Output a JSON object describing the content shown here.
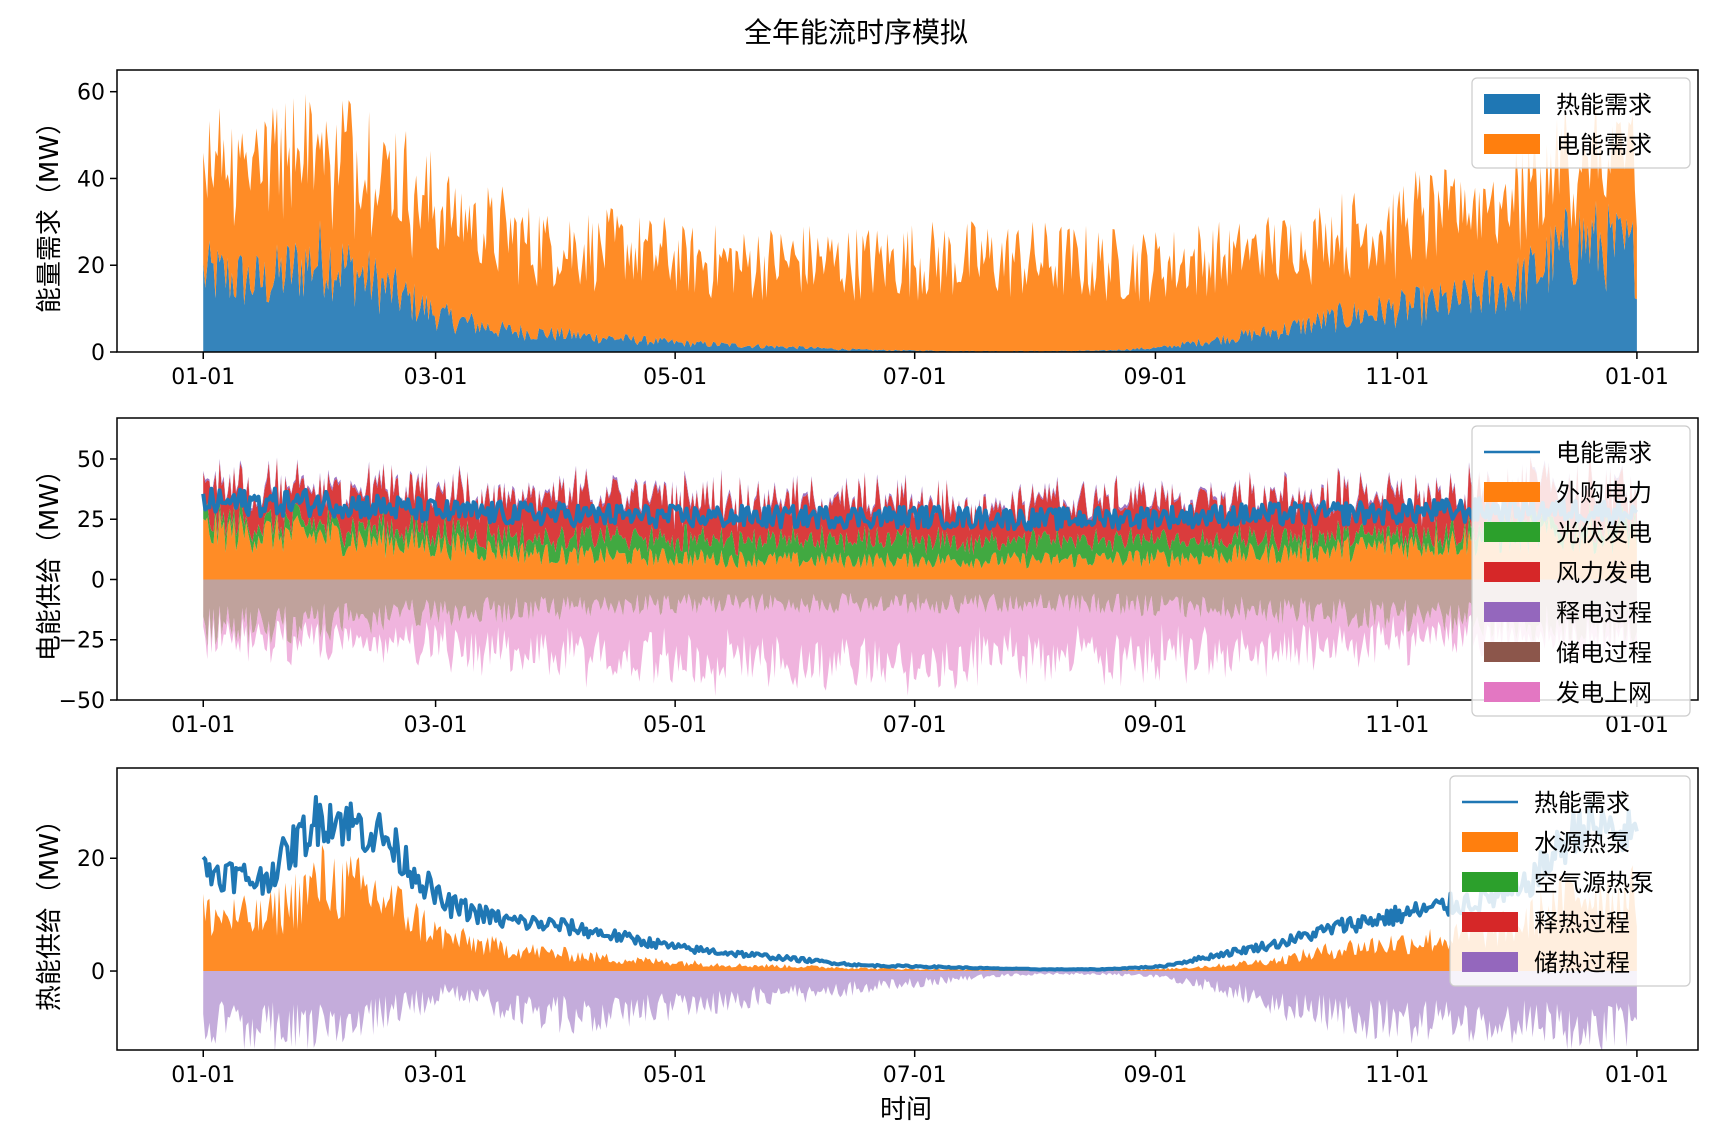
{
  "figure": {
    "suptitle": "全年能流时序模拟",
    "xlabel": "时间"
  },
  "chart_data": [
    {
      "type": "area",
      "id": "demand",
      "ylabel": "能量需求（MW）",
      "ylim": [
        0,
        65
      ],
      "yticks": [
        0,
        20,
        40,
        60
      ],
      "grid": false,
      "legend_position": "top-right",
      "x_unit": "month (2023-01-01 = 0)",
      "xticks": [
        {
          "label": "01-01",
          "x": 0
        },
        {
          "label": "03-01",
          "x": 1.94
        },
        {
          "label": "05-01",
          "x": 3.94
        },
        {
          "label": "07-01",
          "x": 5.94
        },
        {
          "label": "09-01",
          "x": 7.95
        },
        {
          "label": "11-01",
          "x": 9.97
        },
        {
          "label": "01-01",
          "x": 11.97
        }
      ],
      "x": [
        0,
        0.5,
        1,
        1.5,
        2,
        2.5,
        3,
        3.5,
        4,
        4.5,
        5,
        5.5,
        6,
        6.5,
        7,
        7.5,
        8,
        8.5,
        9,
        9.5,
        10,
        10.5,
        11,
        11.5,
        11.97
      ],
      "series": [
        {
          "name": "热能需求",
          "color": "#1f77b4",
          "stacked": true,
          "values": [
            18,
            16,
            22,
            15,
            8,
            5,
            4,
            3,
            2,
            1.5,
            1,
            0.5,
            0.3,
            0.2,
            0.2,
            0.3,
            1,
            3,
            5,
            8,
            10,
            12,
            16,
            26,
            22
          ]
        },
        {
          "name": "电能需求",
          "color": "#ff7f0e",
          "stacked": true,
          "values": [
            26,
            30,
            28,
            26,
            24,
            22,
            20,
            21,
            19,
            19,
            20,
            20,
            21,
            21,
            21,
            20,
            19,
            19,
            19,
            19,
            19,
            20,
            21,
            17,
            20
          ]
        }
      ],
      "peak_values": [
        46,
        52,
        60,
        55,
        36,
        32,
        30,
        30,
        29,
        28,
        27,
        26,
        26,
        26,
        26,
        26,
        25,
        26,
        28,
        30,
        32,
        34,
        40,
        55,
        52
      ]
    },
    {
      "type": "area",
      "id": "electric",
      "ylabel": "电能供给（MW）",
      "ylim": [
        -50,
        67
      ],
      "yticks": [
        -50,
        -25,
        0,
        25,
        50
      ],
      "grid": false,
      "legend_position": "top-right",
      "xticks": [
        {
          "label": "01-01",
          "x": 0
        },
        {
          "label": "03-01",
          "x": 1.94
        },
        {
          "label": "05-01",
          "x": 3.94
        },
        {
          "label": "07-01",
          "x": 5.94
        },
        {
          "label": "09-01",
          "x": 7.95
        },
        {
          "label": "11-01",
          "x": 9.97
        },
        {
          "label": "01-01",
          "x": 11.97
        }
      ],
      "x": [
        0,
        1,
        2,
        3,
        4,
        5,
        6,
        7,
        8,
        9,
        10,
        11,
        11.97
      ],
      "series": [
        {
          "name": "电能需求",
          "color": "#1f77b4",
          "kind": "line",
          "values": [
            32,
            32,
            28,
            27,
            26,
            26,
            26,
            25,
            26,
            27,
            28,
            29,
            28
          ]
        },
        {
          "name": "外购电力",
          "color": "#ff7f0e",
          "stacked": true,
          "values": [
            20,
            18,
            14,
            10,
            9,
            8,
            8,
            8,
            9,
            11,
            14,
            18,
            19
          ]
        },
        {
          "name": "光伏发电",
          "color": "#2ca02c",
          "stacked": true,
          "values": [
            4,
            5,
            6,
            7,
            8,
            8,
            8,
            8,
            7,
            6,
            5,
            4,
            4
          ]
        },
        {
          "name": "风力发电",
          "color": "#d62728",
          "stacked": true,
          "values": [
            14,
            15,
            16,
            17,
            17,
            16,
            15,
            15,
            16,
            16,
            15,
            14,
            14
          ]
        },
        {
          "name": "释电过程",
          "color": "#9467bd",
          "stacked": true,
          "values": [
            1,
            1,
            1,
            1,
            1,
            1,
            1,
            1,
            1,
            1,
            1,
            1,
            1
          ]
        },
        {
          "name": "储电过程",
          "color": "#8c564b",
          "stacked": true,
          "values": [
            -20,
            -18,
            -14,
            -12,
            -10,
            -10,
            -10,
            -10,
            -11,
            -13,
            -15,
            -18,
            -19
          ]
        },
        {
          "name": "发电上网",
          "color": "#e377c2",
          "stacked": true,
          "values": [
            -4,
            -8,
            -14,
            -20,
            -24,
            -25,
            -24,
            -22,
            -20,
            -16,
            -10,
            -6,
            -5
          ]
        }
      ]
    },
    {
      "type": "area",
      "id": "heat",
      "ylabel": "热能供给（MW）",
      "ylim": [
        -14,
        36
      ],
      "yticks": [
        0,
        20
      ],
      "grid": false,
      "legend_position": "top-right",
      "xticks": [
        {
          "label": "01-01",
          "x": 0
        },
        {
          "label": "03-01",
          "x": 1.94
        },
        {
          "label": "05-01",
          "x": 3.94
        },
        {
          "label": "07-01",
          "x": 5.94
        },
        {
          "label": "09-01",
          "x": 7.95
        },
        {
          "label": "11-01",
          "x": 9.97
        },
        {
          "label": "01-01",
          "x": 11.97
        }
      ],
      "x": [
        0,
        0.5,
        1,
        1.5,
        2,
        2.5,
        3,
        3.5,
        4,
        4.5,
        5,
        5.5,
        6,
        6.5,
        7,
        7.5,
        8,
        8.5,
        9,
        9.5,
        10,
        10.5,
        11,
        11.5,
        11.97
      ],
      "series": [
        {
          "name": "热能需求",
          "color": "#1f77b4",
          "kind": "line",
          "values": [
            18,
            16,
            28,
            24,
            12,
            9,
            8,
            6,
            4,
            3,
            2,
            1,
            0.8,
            0.5,
            0.3,
            0.3,
            0.8,
            3,
            5,
            8,
            10,
            12,
            14,
            26,
            24
          ]
        },
        {
          "name": "水源热泵",
          "color": "#ff7f0e",
          "stacked": true,
          "values": [
            10,
            9,
            16,
            13,
            6,
            4,
            3,
            2,
            1.5,
            1,
            0.8,
            0.5,
            0.3,
            0.2,
            0.1,
            0.1,
            0.3,
            1,
            2,
            4,
            5,
            6,
            8,
            14,
            13
          ]
        },
        {
          "name": "空气源热泵",
          "color": "#2ca02c",
          "stacked": true,
          "values": [
            0,
            0,
            0,
            0,
            0,
            0,
            0,
            0,
            0,
            0,
            0,
            0,
            0,
            0,
            0,
            0,
            0,
            0,
            0,
            0,
            0,
            0,
            0,
            0,
            0
          ]
        },
        {
          "name": "释热过程",
          "color": "#d62728",
          "stacked": true,
          "values": [
            0,
            0,
            0,
            0,
            0,
            0,
            0,
            0,
            0,
            0,
            0,
            0,
            0,
            0,
            0,
            0,
            0,
            0,
            0,
            0,
            0,
            0,
            0,
            0,
            0
          ]
        },
        {
          "name": "储热过程",
          "color": "#9467bd",
          "stacked": true,
          "values": [
            -9,
            -10,
            -10,
            -8,
            -4,
            -6,
            -8,
            -7,
            -6,
            -5,
            -4,
            -3,
            -2,
            -1,
            -0.5,
            -0.5,
            -1,
            -3,
            -6,
            -8,
            -9,
            -9,
            -9,
            -10,
            -10
          ]
        }
      ]
    }
  ]
}
